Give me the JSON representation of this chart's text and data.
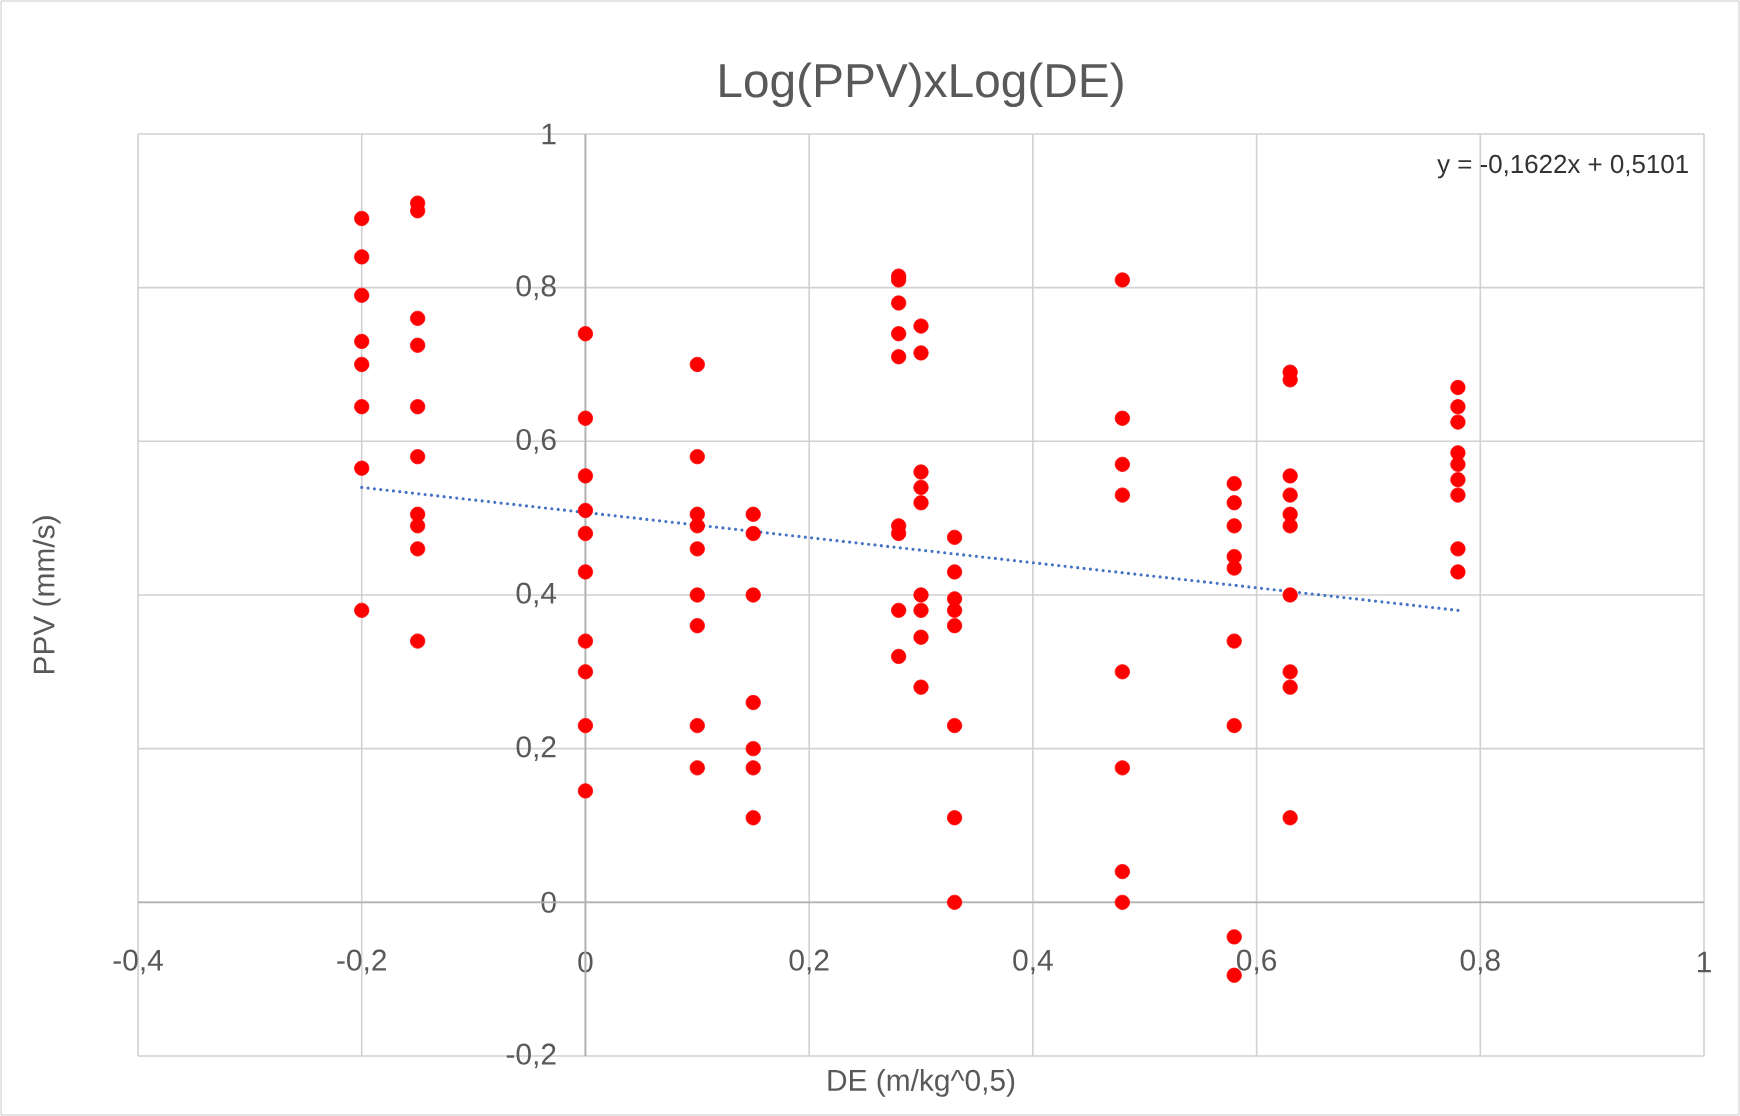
{
  "chart_data": {
    "type": "scatter",
    "title": "Log(PPV)xLog(DE)",
    "xlabel": "DE (m/kg^0,5)",
    "ylabel": "PPV (mm/s)",
    "annotations": [
      "y = -0,1622x + 0,5101"
    ],
    "xlim": [
      -0.4,
      1
    ],
    "ylim": [
      -0.2,
      1
    ],
    "xticks": [
      {
        "value": -0.4,
        "label": "-0,4"
      },
      {
        "value": -0.2,
        "label": "-0,2"
      },
      0,
      {
        "value": 0.2,
        "label": "0,2"
      },
      {
        "value": 0.4,
        "label": "0,4"
      },
      {
        "value": 0.6,
        "label": "0,6"
      },
      {
        "value": 0.8,
        "label": "0,8"
      },
      1
    ],
    "yticks": [
      {
        "value": -0.2,
        "label": "-0,2"
      },
      0,
      {
        "value": 0.2,
        "label": "0,2"
      },
      {
        "value": 0.4,
        "label": "0,4"
      },
      {
        "value": 0.6,
        "label": "0,6"
      },
      {
        "value": 0.8,
        "label": "0,8"
      },
      1
    ],
    "grid": true,
    "marker": "circle",
    "series": [
      {
        "color": "#ff0000",
        "x": [
          -0.2,
          -0.2,
          -0.2,
          -0.2,
          -0.2,
          -0.2,
          -0.2,
          -0.2,
          -0.15,
          -0.15,
          -0.15,
          -0.15,
          -0.15,
          -0.15,
          -0.15,
          -0.15,
          -0.15,
          -0.15,
          0,
          0,
          0,
          0,
          0,
          0,
          0,
          0,
          0,
          0,
          0.1,
          0.1,
          0.1,
          0.1,
          0.1,
          0.1,
          0.1,
          0.1,
          0.1,
          0.15,
          0.15,
          0.15,
          0.15,
          0.15,
          0.15,
          0.15,
          0.28,
          0.28,
          0.28,
          0.28,
          0.28,
          0.28,
          0.28,
          0.28,
          0.28,
          0.3,
          0.3,
          0.3,
          0.3,
          0.3,
          0.3,
          0.3,
          0.3,
          0.3,
          0.33,
          0.33,
          0.33,
          0.33,
          0.33,
          0.33,
          0.33,
          0.33,
          0.48,
          0.48,
          0.48,
          0.48,
          0.48,
          0.48,
          0.48,
          0.48,
          0.58,
          0.58,
          0.58,
          0.58,
          0.58,
          0.58,
          0.58,
          0.58,
          0.58,
          0.63,
          0.63,
          0.63,
          0.63,
          0.63,
          0.63,
          0.63,
          0.63,
          0.63,
          0.63,
          0.78,
          0.78,
          0.78,
          0.78,
          0.78,
          0.78,
          0.78,
          0.78,
          0.78
        ],
        "values": [
          0.89,
          0.84,
          0.79,
          0.73,
          0.7,
          0.645,
          0.565,
          0.38,
          0.91,
          0.9,
          0.76,
          0.725,
          0.645,
          0.58,
          0.505,
          0.49,
          0.46,
          0.34,
          0.74,
          0.63,
          0.555,
          0.51,
          0.48,
          0.43,
          0.34,
          0.3,
          0.23,
          0.145,
          0.7,
          0.58,
          0.505,
          0.49,
          0.46,
          0.4,
          0.36,
          0.23,
          0.175,
          0.505,
          0.48,
          0.4,
          0.26,
          0.2,
          0.175,
          0.11,
          0.815,
          0.81,
          0.78,
          0.74,
          0.71,
          0.49,
          0.48,
          0.38,
          0.32,
          0.75,
          0.715,
          0.56,
          0.54,
          0.52,
          0.4,
          0.38,
          0.345,
          0.28,
          0.475,
          0.43,
          0.395,
          0.38,
          0.36,
          0.23,
          0.11,
          0,
          0.81,
          0.63,
          0.57,
          0.53,
          0.3,
          0.175,
          0.04,
          0,
          0.545,
          0.52,
          0.49,
          0.45,
          0.435,
          0.34,
          0.23,
          -0.045,
          -0.095,
          0.69,
          0.68,
          0.555,
          0.53,
          0.505,
          0.49,
          0.4,
          0.3,
          0.28,
          0.11,
          0.67,
          0.645,
          0.625,
          0.585,
          0.57,
          0.55,
          0.53,
          0.46,
          0.43
        ]
      },
      {
        "type": "line",
        "color": "#4472c4",
        "marker": "none",
        "line_style": "dotted",
        "x": [
          -0.2,
          0.78
        ],
        "values": [
          0.54,
          0.38
        ]
      }
    ]
  }
}
